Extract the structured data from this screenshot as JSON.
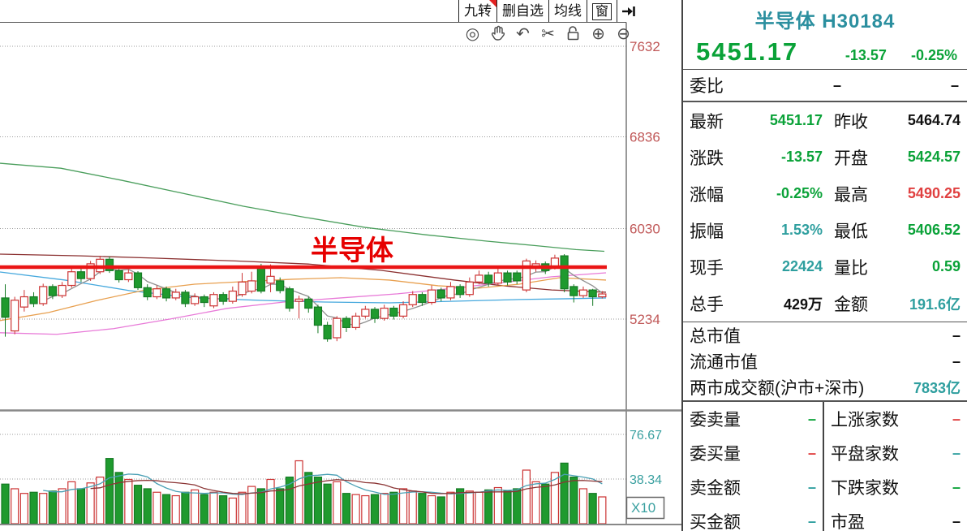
{
  "toolbar": {
    "buttons": [
      {
        "label": "九转",
        "flag": true
      },
      {
        "label": "删自选"
      },
      {
        "label": "均线"
      },
      {
        "label": "窗",
        "boxed": true
      }
    ],
    "tool_icons": [
      {
        "name": "eye-icon",
        "glyph": "◎"
      },
      {
        "name": "hand-icon",
        "glyph": "svg-hand"
      },
      {
        "name": "undo-icon",
        "glyph": "↶"
      },
      {
        "name": "scissors-icon",
        "glyph": "✂"
      },
      {
        "name": "lock-open-icon",
        "glyph": "svg-lock"
      },
      {
        "name": "zoom-in-icon",
        "glyph": "⊕"
      },
      {
        "name": "zoom-out-icon",
        "glyph": "⊖"
      }
    ]
  },
  "panel": {
    "title": "半导体 H30184",
    "price": "5451.17",
    "change": "-13.57",
    "change_pct": "-0.25%",
    "weibi": {
      "label": "委比",
      "v1": "–",
      "v2": "–"
    },
    "rows": [
      {
        "l1": "最新",
        "v1": "5451.17",
        "c1": "green",
        "l2": "昨收",
        "v2": "5464.74",
        "c2": "black"
      },
      {
        "l1": "涨跌",
        "v1": "-13.57",
        "c1": "green",
        "l2": "开盘",
        "v2": "5424.57",
        "c2": "green"
      },
      {
        "l1": "涨幅",
        "v1": "-0.25%",
        "c1": "green",
        "l2": "最高",
        "v2": "5490.25",
        "c2": "red"
      },
      {
        "l1": "振幅",
        "v1": "1.53%",
        "c1": "teal",
        "l2": "最低",
        "v2": "5406.52",
        "c2": "green"
      },
      {
        "l1": "现手",
        "v1": "22424",
        "c1": "teal",
        "l2": "量比",
        "v2": "0.59",
        "c2": "green"
      },
      {
        "l1": "总手",
        "v1": "429万",
        "c1": "black",
        "l2": "金额",
        "v2": "191.6亿",
        "c2": "teal"
      }
    ],
    "cap_rows": [
      {
        "label": "总市值",
        "value": "–",
        "color": "black"
      },
      {
        "label": "流通市值",
        "value": "–",
        "color": "black"
      },
      {
        "label": "两市成交额(沪市+深市)",
        "value": "7833亿",
        "color": "teal"
      }
    ],
    "grid_rows": [
      {
        "l1": "委卖量",
        "v1": "–",
        "c1": "green",
        "l2": "上涨家数",
        "v2": "–",
        "c2": "red"
      },
      {
        "l1": "委买量",
        "v1": "–",
        "c1": "red",
        "l2": "平盘家数",
        "v2": "–",
        "c2": "teal"
      },
      {
        "l1": "卖金额",
        "v1": "–",
        "c1": "teal",
        "l2": "下跌家数",
        "v2": "–",
        "c2": "green"
      },
      {
        "l1": "买金额",
        "v1": "–",
        "c1": "teal",
        "l2": "市盈",
        "v2": "–",
        "c2": "black"
      }
    ]
  },
  "colors": {
    "up": "#cc3333",
    "down": "#1f9a2e",
    "down_stroke": "#157a24",
    "axis_label": "#c05858",
    "vol_label": "#3aa0a0",
    "hline": "#ea1515",
    "annotation": "#e60000",
    "grid": "#9a9a9a",
    "frame": "#555555"
  },
  "chart_data": [
    {
      "type": "candlestick",
      "title": "半导体 日K线",
      "annotation": {
        "text": "半导体"
      },
      "hline_price": 5691,
      "y_ticks": [
        7632,
        6836,
        6030,
        5234
      ],
      "ylim": [
        4435,
        7839
      ],
      "candles": {
        "open": [
          5420,
          5130,
          5340,
          5430,
          5370,
          5520,
          5440,
          5530,
          5650,
          5590,
          5650,
          5760,
          5660,
          5580,
          5640,
          5510,
          5430,
          5500,
          5420,
          5470,
          5370,
          5430,
          5350,
          5450,
          5390,
          5450,
          5480,
          5695,
          5550,
          5570,
          5500,
          5390,
          5410,
          5340,
          5180,
          5070,
          5240,
          5160,
          5260,
          5320,
          5240,
          5330,
          5260,
          5360,
          5450,
          5380,
          5490,
          5420,
          5520,
          5450,
          5560,
          5620,
          5550,
          5640,
          5640,
          5490,
          5680,
          5720,
          5690,
          5790,
          5520,
          5440,
          5490,
          5430
        ],
        "high": [
          5540,
          5430,
          5490,
          5470,
          5545,
          5540,
          5560,
          5690,
          5700,
          5745,
          5790,
          5785,
          5700,
          5670,
          5655,
          5540,
          5530,
          5520,
          5500,
          5490,
          5460,
          5450,
          5470,
          5470,
          5520,
          5640,
          5650,
          5720,
          5715,
          5600,
          5520,
          5440,
          5430,
          5360,
          5210,
          5260,
          5260,
          5290,
          5350,
          5340,
          5360,
          5350,
          5390,
          5480,
          5470,
          5530,
          5510,
          5560,
          5540,
          5600,
          5660,
          5650,
          5690,
          5660,
          5660,
          5765,
          5750,
          5740,
          5800,
          5805,
          5540,
          5520,
          5500,
          5480
        ],
        "low": [
          5080,
          5100,
          5300,
          5340,
          5350,
          5410,
          5420,
          5510,
          5560,
          5570,
          5630,
          5640,
          5555,
          5560,
          5490,
          5400,
          5410,
          5390,
          5400,
          5340,
          5350,
          5340,
          5330,
          5360,
          5370,
          5430,
          5460,
          5460,
          5470,
          5460,
          5300,
          5240,
          5290,
          5110,
          5035,
          5040,
          5120,
          5140,
          5240,
          5200,
          5220,
          5230,
          5240,
          5340,
          5350,
          5360,
          5390,
          5400,
          5420,
          5430,
          5540,
          5520,
          5530,
          5530,
          5540,
          5470,
          5650,
          5630,
          5670,
          5470,
          5380,
          5420,
          5350,
          5415
        ],
        "close": [
          5250,
          5400,
          5430,
          5370,
          5520,
          5440,
          5530,
          5650,
          5590,
          5720,
          5760,
          5660,
          5580,
          5640,
          5510,
          5430,
          5500,
          5420,
          5470,
          5370,
          5430,
          5380,
          5450,
          5390,
          5480,
          5560,
          5570,
          5480,
          5610,
          5485,
          5330,
          5410,
          5330,
          5180,
          5060,
          5240,
          5160,
          5260,
          5320,
          5240,
          5330,
          5260,
          5360,
          5450,
          5380,
          5490,
          5420,
          5520,
          5450,
          5560,
          5620,
          5550,
          5640,
          5560,
          5570,
          5745,
          5720,
          5660,
          5770,
          5500,
          5440,
          5490,
          5430,
          5455
        ]
      },
      "ma_lines": [
        {
          "name": "ma-green-long",
          "color": "#4a9e5c",
          "points": [
            [
              0,
              6604
            ],
            [
              75,
              6560
            ],
            [
              150,
              6454
            ],
            [
              225,
              6340
            ],
            [
              300,
              6226
            ],
            [
              375,
              6130
            ],
            [
              450,
              6040
            ],
            [
              525,
              5975
            ],
            [
              600,
              5919
            ],
            [
              660,
              5880
            ],
            [
              710,
              5845
            ],
            [
              745,
              5830
            ]
          ]
        },
        {
          "name": "ma-maroon",
          "color": "#8b3030",
          "points": [
            [
              0,
              5805
            ],
            [
              100,
              5790
            ],
            [
              190,
              5770
            ],
            [
              290,
              5745
            ],
            [
              380,
              5718
            ],
            [
              470,
              5662
            ],
            [
              560,
              5577
            ],
            [
              620,
              5527
            ],
            [
              680,
              5490
            ],
            [
              747,
              5470
            ]
          ]
        },
        {
          "name": "ma-blue",
          "color": "#45a8dd",
          "points": [
            [
              0,
              5648
            ],
            [
              80,
              5577
            ],
            [
              160,
              5484
            ],
            [
              240,
              5420
            ],
            [
              320,
              5399
            ],
            [
              400,
              5384
            ],
            [
              480,
              5377
            ],
            [
              560,
              5391
            ],
            [
              640,
              5406
            ],
            [
              700,
              5413
            ],
            [
              747,
              5420
            ]
          ]
        },
        {
          "name": "ma-orange",
          "color": "#e8a050",
          "points": [
            [
              0,
              5221
            ],
            [
              60,
              5292
            ],
            [
              120,
              5399
            ],
            [
              180,
              5491
            ],
            [
              240,
              5541
            ],
            [
              300,
              5563
            ],
            [
              360,
              5584
            ],
            [
              420,
              5598
            ],
            [
              480,
              5577
            ],
            [
              540,
              5527
            ],
            [
              590,
              5506
            ],
            [
              640,
              5541
            ],
            [
              690,
              5598
            ],
            [
              747,
              5577
            ]
          ]
        },
        {
          "name": "ma-magenta",
          "color": "#e87ad8",
          "points": [
            [
              0,
              5114
            ],
            [
              70,
              5100
            ],
            [
              140,
              5150
            ],
            [
              210,
              5235
            ],
            [
              280,
              5328
            ],
            [
              350,
              5384
            ],
            [
              420,
              5420
            ],
            [
              490,
              5456
            ],
            [
              560,
              5506
            ],
            [
              620,
              5556
            ],
            [
              680,
              5606
            ],
            [
              747,
              5641
            ]
          ]
        },
        {
          "name": "ma5-gray",
          "color": "#909090",
          "period": 5
        }
      ]
    },
    {
      "type": "bar",
      "name": "volume",
      "y_ticks": [
        76.67,
        38.34
      ],
      "unit_label": "X10",
      "values": [
        34,
        30,
        26,
        27,
        26,
        28,
        30,
        36,
        30,
        35,
        40,
        56,
        44,
        38,
        33,
        30,
        27,
        25,
        24,
        27,
        29,
        25,
        27,
        24,
        22,
        27,
        32,
        30,
        38,
        30,
        40,
        54,
        44,
        40,
        34,
        36,
        26,
        25,
        24,
        25,
        26,
        27,
        30,
        28,
        26,
        24,
        23,
        27,
        30,
        28,
        27,
        29,
        31,
        28,
        30,
        46,
        36,
        34,
        44,
        52,
        40,
        30,
        26,
        23
      ],
      "ma_periods": [
        {
          "period": 5,
          "color": "#4aa0b5"
        },
        {
          "period": 10,
          "color": "#8b3535"
        }
      ]
    }
  ]
}
